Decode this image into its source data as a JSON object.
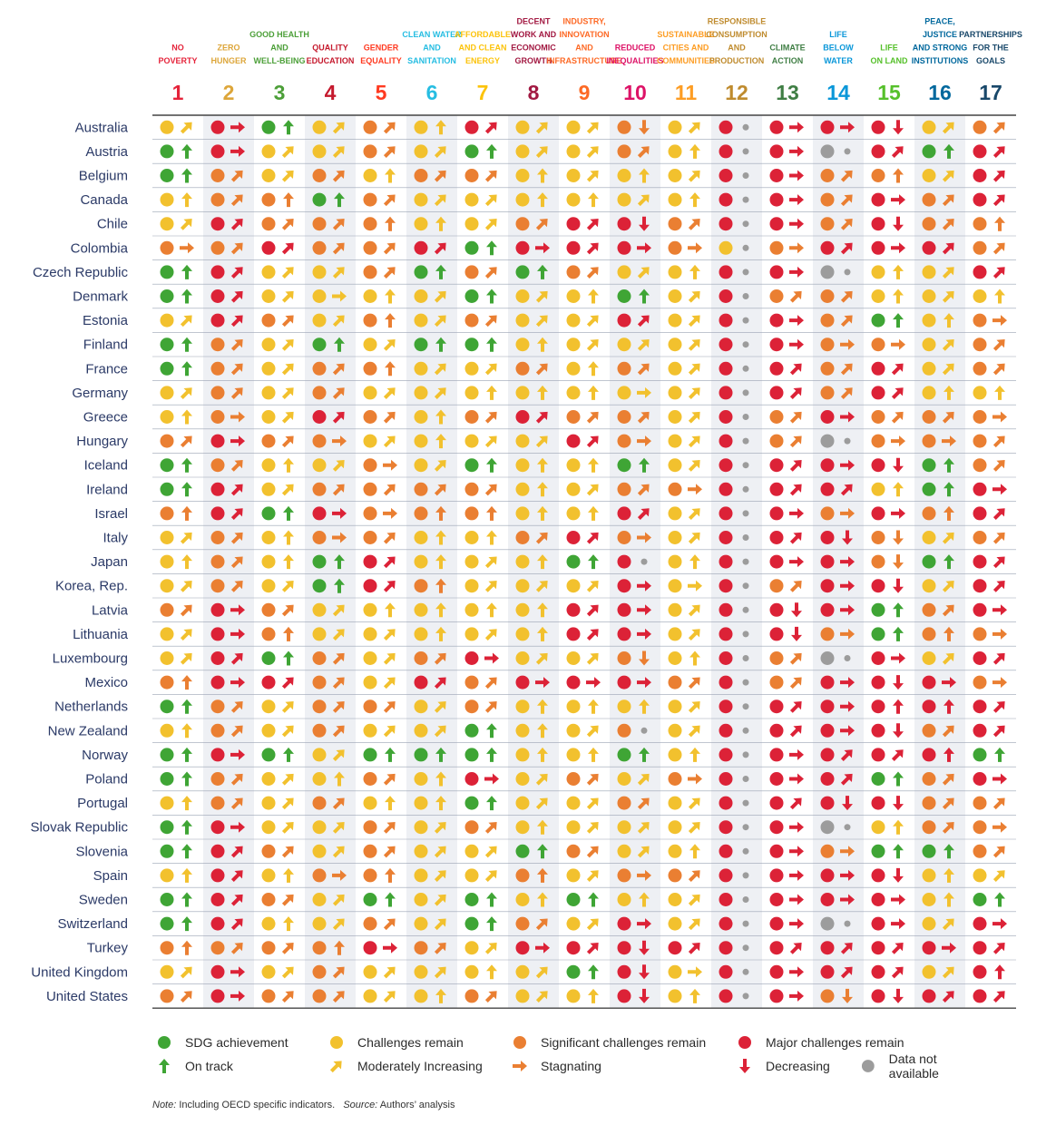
{
  "chart_data": {
    "type": "table",
    "goals": [
      {
        "number": "1",
        "label": [
          "NO",
          "POVERTY"
        ],
        "color": "#e5243b"
      },
      {
        "number": "2",
        "label": [
          "ZERO",
          "HUNGER"
        ],
        "color": "#dda63a"
      },
      {
        "number": "3",
        "label": [
          "GOOD HEALTH",
          "AND",
          "WELL-BEING"
        ],
        "color": "#4c9f38"
      },
      {
        "number": "4",
        "label": [
          "QUALITY",
          "EDUCATION"
        ],
        "color": "#c5192d"
      },
      {
        "number": "5",
        "label": [
          "GENDER",
          "EQUALITY"
        ],
        "color": "#ff3a21"
      },
      {
        "number": "6",
        "label": [
          "CLEAN WATER",
          "AND",
          "SANITATION"
        ],
        "color": "#26bde2"
      },
      {
        "number": "7",
        "label": [
          "AFFORDABLE",
          "AND CLEAN",
          "ENERGY"
        ],
        "color": "#fcc30b"
      },
      {
        "number": "8",
        "label": [
          "DECENT",
          "WORK AND",
          "ECONOMIC",
          "GROWTH"
        ],
        "color": "#a21942"
      },
      {
        "number": "9",
        "label": [
          "INDUSTRY,",
          "INNOVATION",
          "AND",
          "INFRASTRUCTURE"
        ],
        "color": "#fd6925"
      },
      {
        "number": "10",
        "label": [
          "REDUCED",
          "INEQUALITIES"
        ],
        "color": "#dd1367"
      },
      {
        "number": "11",
        "label": [
          "SUSTAINABLE",
          "CITIES AND",
          "COMMUNITIES"
        ],
        "color": "#fd9d24"
      },
      {
        "number": "12",
        "label": [
          "RESPONSIBLE",
          "CONSUMPTION",
          "AND",
          "PRODUCTION"
        ],
        "color": "#bf8b2e"
      },
      {
        "number": "13",
        "label": [
          "CLIMATE",
          "ACTION"
        ],
        "color": "#3f7e44"
      },
      {
        "number": "14",
        "label": [
          "LIFE",
          "BELOW",
          "WATER"
        ],
        "color": "#0a97d9"
      },
      {
        "number": "15",
        "label": [
          "LIFE",
          "ON LAND"
        ],
        "color": "#56c02b"
      },
      {
        "number": "16",
        "label": [
          "PEACE,",
          "JUSTICE",
          "AND STRONG",
          "INSTITUTIONS"
        ],
        "color": "#00689d"
      },
      {
        "number": "17",
        "label": [
          "PARTNERSHIPS",
          "FOR THE",
          "GOALS"
        ],
        "color": "#19486a"
      }
    ],
    "status_key": {
      "G": "SDG achievement",
      "Y": "Challenges remain",
      "O": "Significant challenges remain",
      "R": "Major challenges remain",
      "N": "Data not available"
    },
    "trend_key": {
      "u": "On track",
      "m": "Moderately Increasing",
      "s": "Stagnating",
      "d": "Decreasing",
      "n": "Data not available"
    },
    "colors": {
      "G": "#3fa535",
      "Y": "#f2c12e",
      "O": "#ea7f32",
      "R": "#dc2237",
      "N": "#9c9c9c"
    },
    "rows": [
      {
        "country": "Australia",
        "cells": [
          "Ym",
          "Rs",
          "Gu",
          "Ym",
          "Om",
          "Yu",
          "Rm",
          "Ym",
          "Ym",
          "Od",
          "Ym",
          "Rn",
          "Rs",
          "Rs",
          "Rd",
          "Ym",
          "Om"
        ]
      },
      {
        "country": "Austria",
        "cells": [
          "Gu",
          "Rs",
          "Ym",
          "Ym",
          "Om",
          "Ym",
          "Gu",
          "Ym",
          "Ym",
          "Om",
          "Yu",
          "Rn",
          "Rs",
          "Nn",
          "Rm",
          "Gu",
          "Rm"
        ]
      },
      {
        "country": "Belgium",
        "cells": [
          "Gu",
          "Om",
          "Ym",
          "Om",
          "Yu",
          "Om",
          "Om",
          "Yu",
          "Ym",
          "Yu",
          "Ym",
          "Rn",
          "Rs",
          "Om",
          "Ou",
          "Ym",
          "Rm"
        ]
      },
      {
        "country": "Canada",
        "cells": [
          "Yu",
          "Om",
          "Ou",
          "Gu",
          "Om",
          "Ym",
          "Ym",
          "Yu",
          "Yu",
          "Ym",
          "Yu",
          "Rn",
          "Rs",
          "Om",
          "Rs",
          "Om",
          "Rm"
        ]
      },
      {
        "country": "Chile",
        "cells": [
          "Ym",
          "Rm",
          "Om",
          "Om",
          "Ou",
          "Yu",
          "Ym",
          "Om",
          "Rm",
          "Rd",
          "Om",
          "Rn",
          "Rs",
          "Om",
          "Rd",
          "Om",
          "Ou"
        ]
      },
      {
        "country": "Colombia",
        "cells": [
          "Os",
          "Om",
          "Rm",
          "Om",
          "Om",
          "Rm",
          "Gu",
          "Rs",
          "Rm",
          "Rs",
          "Os",
          "Yn",
          "Os",
          "Rm",
          "Rs",
          "Rm",
          "Om"
        ]
      },
      {
        "country": "Czech Republic",
        "cells": [
          "Gu",
          "Rm",
          "Ym",
          "Ym",
          "Om",
          "Gu",
          "Om",
          "Gu",
          "Om",
          "Ym",
          "Yu",
          "Rn",
          "Rs",
          "Nn",
          "Yu",
          "Ym",
          "Rm"
        ]
      },
      {
        "country": "Denmark",
        "cells": [
          "Gu",
          "Rm",
          "Ym",
          "Ys",
          "Yu",
          "Ym",
          "Gu",
          "Ym",
          "Yu",
          "Gu",
          "Ym",
          "Rn",
          "Om",
          "Om",
          "Yu",
          "Ym",
          "Yu"
        ]
      },
      {
        "country": "Estonia",
        "cells": [
          "Ym",
          "Rm",
          "Om",
          "Ym",
          "Ou",
          "Ym",
          "Om",
          "Ym",
          "Ym",
          "Rm",
          "Ym",
          "Rn",
          "Rs",
          "Om",
          "Gu",
          "Yu",
          "Os"
        ]
      },
      {
        "country": "Finland",
        "cells": [
          "Gu",
          "Om",
          "Ym",
          "Gu",
          "Ym",
          "Gu",
          "Gu",
          "Yu",
          "Ym",
          "Ym",
          "Ym",
          "Rn",
          "Rs",
          "Os",
          "Os",
          "Ym",
          "Om"
        ]
      },
      {
        "country": "France",
        "cells": [
          "Gu",
          "Om",
          "Ym",
          "Om",
          "Ou",
          "Ym",
          "Ym",
          "Om",
          "Yu",
          "Om",
          "Ym",
          "Rn",
          "Rm",
          "Om",
          "Rm",
          "Ym",
          "Om"
        ]
      },
      {
        "country": "Germany",
        "cells": [
          "Ym",
          "Om",
          "Ym",
          "Om",
          "Ym",
          "Ym",
          "Yu",
          "Yu",
          "Yu",
          "Ys",
          "Ym",
          "Rn",
          "Rm",
          "Om",
          "Rm",
          "Yu",
          "Yu"
        ]
      },
      {
        "country": "Greece",
        "cells": [
          "Yu",
          "Os",
          "Ym",
          "Rm",
          "Om",
          "Yu",
          "Om",
          "Rm",
          "Om",
          "Om",
          "Ym",
          "Rn",
          "Om",
          "Rs",
          "Om",
          "Om",
          "Os"
        ]
      },
      {
        "country": "Hungary",
        "cells": [
          "Om",
          "Rs",
          "Om",
          "Os",
          "Ym",
          "Yu",
          "Ym",
          "Ym",
          "Rm",
          "Os",
          "Ym",
          "Rn",
          "Om",
          "Nn",
          "Os",
          "Os",
          "Om"
        ]
      },
      {
        "country": "Iceland",
        "cells": [
          "Gu",
          "Om",
          "Yu",
          "Ym",
          "Os",
          "Ym",
          "Gu",
          "Yu",
          "Yu",
          "Gu",
          "Ym",
          "Rn",
          "Rm",
          "Rs",
          "Rd",
          "Gu",
          "Om"
        ]
      },
      {
        "country": "Ireland",
        "cells": [
          "Gu",
          "Rm",
          "Ym",
          "Om",
          "Om",
          "Om",
          "Om",
          "Yu",
          "Ym",
          "Om",
          "Os",
          "Rn",
          "Rm",
          "Rm",
          "Yu",
          "Gu",
          "Rs"
        ]
      },
      {
        "country": "Israel",
        "cells": [
          "Ou",
          "Rm",
          "Gu",
          "Rs",
          "Os",
          "Ou",
          "Ou",
          "Yu",
          "Yu",
          "Rm",
          "Ym",
          "Rn",
          "Rs",
          "Os",
          "Rs",
          "Ou",
          "Rm"
        ]
      },
      {
        "country": "Italy",
        "cells": [
          "Ym",
          "Om",
          "Yu",
          "Os",
          "Om",
          "Yu",
          "Yu",
          "Om",
          "Rm",
          "Os",
          "Ym",
          "Rn",
          "Rm",
          "Rd",
          "Od",
          "Ym",
          "Om"
        ]
      },
      {
        "country": "Japan",
        "cells": [
          "Yu",
          "Om",
          "Yu",
          "Gu",
          "Rm",
          "Yu",
          "Ym",
          "Yu",
          "Gu",
          "Rn",
          "Yu",
          "Rn",
          "Rs",
          "Rs",
          "Od",
          "Gu",
          "Rm"
        ]
      },
      {
        "country": "Korea, Rep.",
        "cells": [
          "Ym",
          "Om",
          "Ym",
          "Gu",
          "Rm",
          "Ou",
          "Ym",
          "Ym",
          "Ym",
          "Rs",
          "Ys",
          "Rn",
          "Om",
          "Rs",
          "Rd",
          "Ym",
          "Rm"
        ]
      },
      {
        "country": "Latvia",
        "cells": [
          "Om",
          "Rs",
          "Om",
          "Ym",
          "Yu",
          "Yu",
          "Yu",
          "Yu",
          "Rm",
          "Rs",
          "Ym",
          "Rn",
          "Rd",
          "Rs",
          "Gu",
          "Om",
          "Rs"
        ]
      },
      {
        "country": "Lithuania",
        "cells": [
          "Ym",
          "Rs",
          "Ou",
          "Ym",
          "Ym",
          "Yu",
          "Ym",
          "Yu",
          "Rm",
          "Rs",
          "Ym",
          "Rn",
          "Rd",
          "Os",
          "Gu",
          "Ou",
          "Os"
        ]
      },
      {
        "country": "Luxembourg",
        "cells": [
          "Ym",
          "Rm",
          "Gu",
          "Om",
          "Ym",
          "Om",
          "Rs",
          "Ym",
          "Ym",
          "Od",
          "Yu",
          "Rn",
          "Om",
          "Nn",
          "Rs",
          "Ym",
          "Rm"
        ]
      },
      {
        "country": "Mexico",
        "cells": [
          "Ou",
          "Rs",
          "Rm",
          "Om",
          "Ym",
          "Rm",
          "Om",
          "Rs",
          "Rs",
          "Rs",
          "Om",
          "Rn",
          "Om",
          "Rs",
          "Rd",
          "Rs",
          "Os"
        ]
      },
      {
        "country": "Netherlands",
        "cells": [
          "Gu",
          "Om",
          "Ym",
          "Om",
          "Om",
          "Ym",
          "Om",
          "Yu",
          "Yu",
          "Yu",
          "Ym",
          "Rn",
          "Rm",
          "Rs",
          "Ru",
          "Ru",
          "Rm"
        ]
      },
      {
        "country": "New Zealand",
        "cells": [
          "Yu",
          "Om",
          "Ym",
          "Om",
          "Ym",
          "Ym",
          "Gu",
          "Yu",
          "Ym",
          "On",
          "Ym",
          "Rn",
          "Rm",
          "Rs",
          "Rd",
          "Om",
          "Rm"
        ]
      },
      {
        "country": "Norway",
        "cells": [
          "Gu",
          "Rs",
          "Gu",
          "Ym",
          "Gu",
          "Gu",
          "Gu",
          "Yu",
          "Yu",
          "Gu",
          "Yu",
          "Rn",
          "Rs",
          "Rm",
          "Rm",
          "Ru",
          "Gu"
        ]
      },
      {
        "country": "Poland",
        "cells": [
          "Gu",
          "Om",
          "Ym",
          "Yu",
          "Om",
          "Yu",
          "Rs",
          "Ym",
          "Om",
          "Ym",
          "Os",
          "Rn",
          "Rs",
          "Rm",
          "Gu",
          "Om",
          "Rs"
        ]
      },
      {
        "country": "Portugal",
        "cells": [
          "Yu",
          "Om",
          "Ym",
          "Om",
          "Yu",
          "Yu",
          "Gu",
          "Ym",
          "Ym",
          "Om",
          "Ym",
          "Rn",
          "Rm",
          "Rd",
          "Rd",
          "Om",
          "Om"
        ]
      },
      {
        "country": "Slovak Republic",
        "cells": [
          "Gu",
          "Rs",
          "Ym",
          "Ym",
          "Om",
          "Ym",
          "Om",
          "Yu",
          "Ym",
          "Ym",
          "Ym",
          "Rn",
          "Rs",
          "Nn",
          "Yu",
          "Om",
          "Os"
        ]
      },
      {
        "country": "Slovenia",
        "cells": [
          "Gu",
          "Rm",
          "Om",
          "Ym",
          "Om",
          "Ym",
          "Ym",
          "Gu",
          "Om",
          "Ym",
          "Yu",
          "Rn",
          "Rs",
          "Os",
          "Gu",
          "Gu",
          "Om"
        ]
      },
      {
        "country": "Spain",
        "cells": [
          "Yu",
          "Rm",
          "Yu",
          "Os",
          "Ou",
          "Ym",
          "Ym",
          "Ou",
          "Ym",
          "Os",
          "Om",
          "Rn",
          "Rs",
          "Rs",
          "Rd",
          "Yu",
          "Ym"
        ]
      },
      {
        "country": "Sweden",
        "cells": [
          "Gu",
          "Rm",
          "Om",
          "Ym",
          "Gu",
          "Ym",
          "Gu",
          "Yu",
          "Gu",
          "Yu",
          "Ym",
          "Rn",
          "Rs",
          "Rs",
          "Rs",
          "Yu",
          "Gu"
        ]
      },
      {
        "country": "Switzerland",
        "cells": [
          "Gu",
          "Rm",
          "Yu",
          "Ym",
          "Om",
          "Ym",
          "Gu",
          "Om",
          "Ym",
          "Rs",
          "Ym",
          "Rn",
          "Rs",
          "Nn",
          "Rs",
          "Ym",
          "Rs"
        ]
      },
      {
        "country": "Turkey",
        "cells": [
          "Ou",
          "Om",
          "Om",
          "Ou",
          "Rs",
          "Om",
          "Ym",
          "Rs",
          "Rm",
          "Rd",
          "Rm",
          "Rn",
          "Rm",
          "Rm",
          "Rm",
          "Rs",
          "Rm"
        ]
      },
      {
        "country": "United Kingdom",
        "cells": [
          "Ym",
          "Rs",
          "Ym",
          "Om",
          "Ym",
          "Ym",
          "Yu",
          "Ym",
          "Gu",
          "Rd",
          "Ys",
          "Rn",
          "Rs",
          "Rm",
          "Rm",
          "Ym",
          "Ru"
        ]
      },
      {
        "country": "United States",
        "cells": [
          "Om",
          "Rs",
          "Om",
          "Om",
          "Ym",
          "Yu",
          "Om",
          "Ym",
          "Yu",
          "Rd",
          "Yu",
          "Rn",
          "Rs",
          "Od",
          "Rd",
          "Rm",
          "Rm"
        ]
      }
    ]
  },
  "legend": {
    "status": [
      {
        "key": "G",
        "label": "SDG achievement"
      },
      {
        "key": "Y",
        "label": "Challenges remain"
      },
      {
        "key": "O",
        "label": "Significant challenges remain"
      },
      {
        "key": "R",
        "label": "Major challenges remain"
      }
    ],
    "trend": [
      {
        "key": "u",
        "label": "On track"
      },
      {
        "key": "m",
        "label": "Moderately Increasing"
      },
      {
        "key": "s",
        "label": "Stagnating"
      },
      {
        "key": "d",
        "label": "Decreasing"
      },
      {
        "key": "n",
        "label": "Data not available"
      }
    ]
  },
  "footnote": {
    "note_label": "Note:",
    "note_text": " Including OECD specific indicators.",
    "source_label": "Source:",
    "source_text": " Authors’ analysis"
  }
}
